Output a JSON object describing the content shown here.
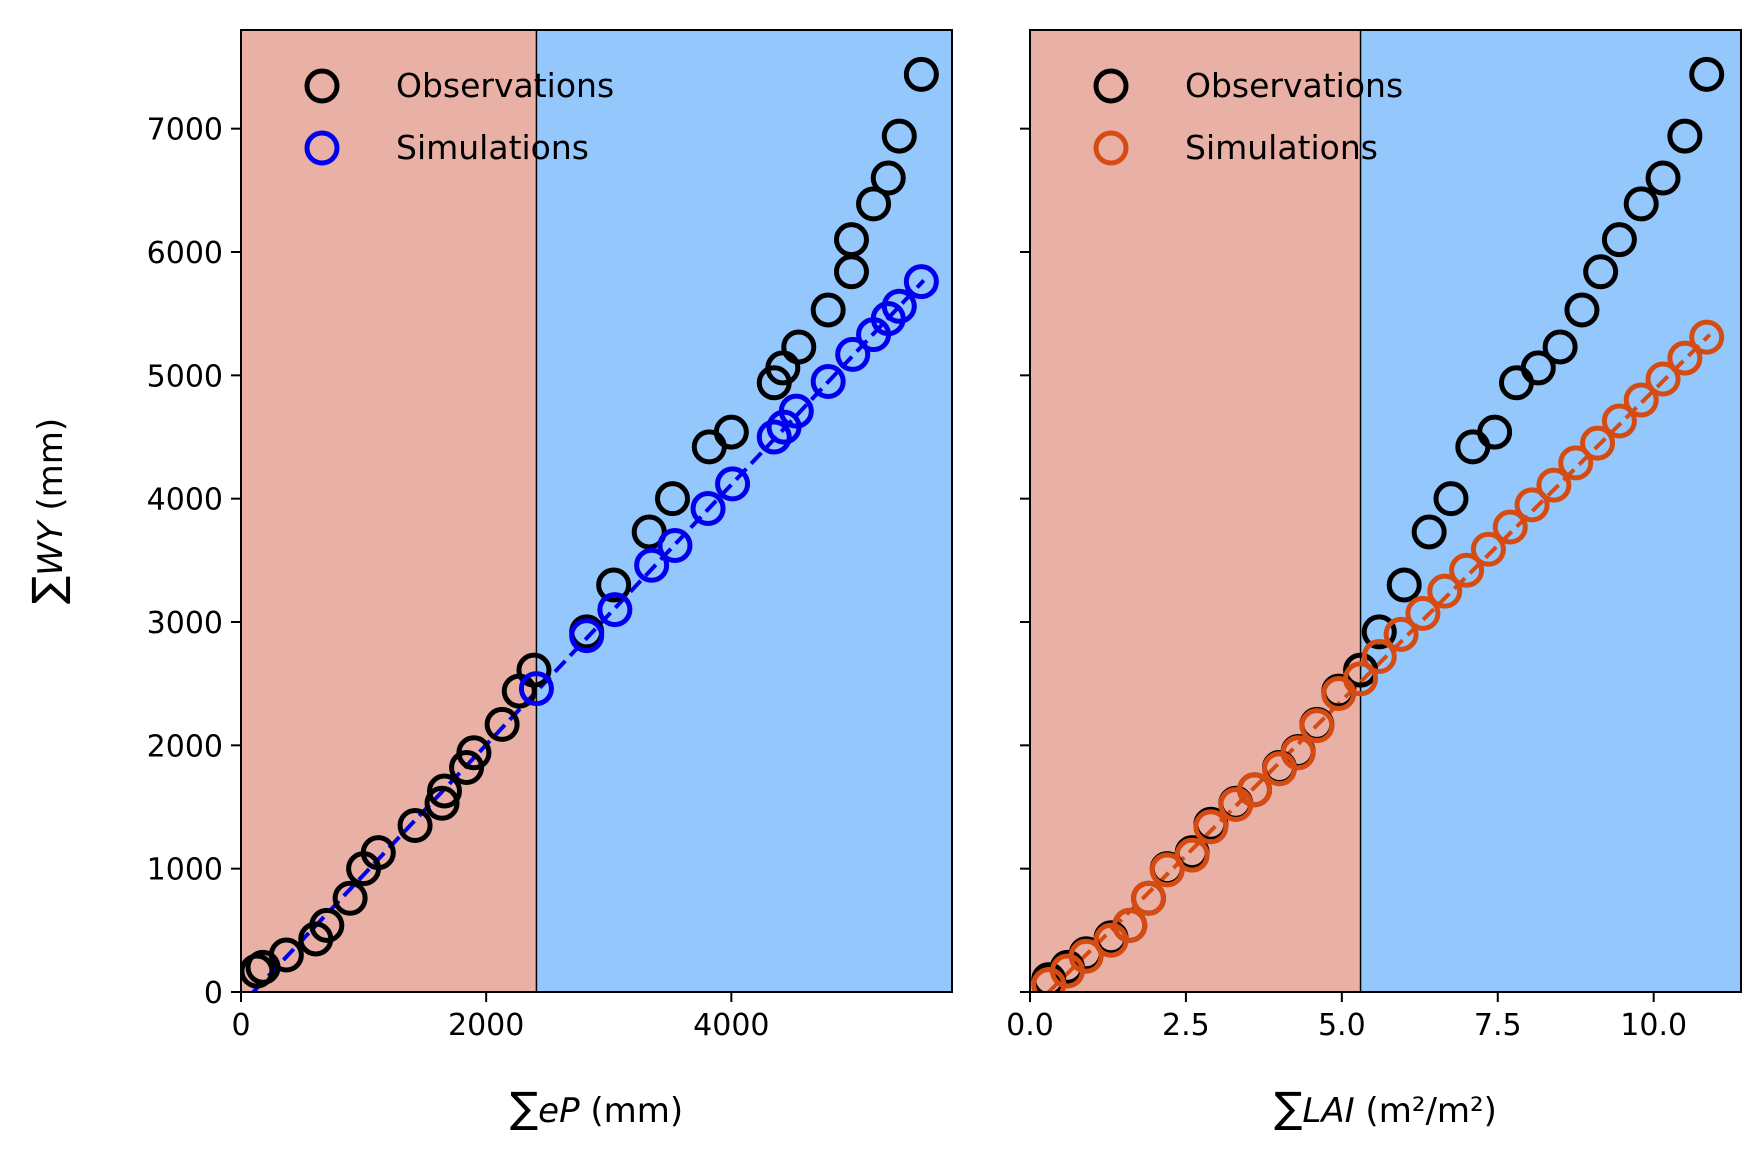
{
  "chart_data": [
    {
      "type": "scatter",
      "xlabel": {
        "sym": "∑",
        "var": "eP",
        "unit": " (mm)"
      },
      "ylabel": {
        "sym": "∑",
        "var": "WY",
        "unit": " (mm)"
      },
      "xlim": [
        0,
        5800
      ],
      "ylim": [
        0,
        7800
      ],
      "xticks": [
        0,
        2000,
        4000
      ],
      "xtick_labels": [
        "0",
        "2000",
        "4000"
      ],
      "yticks": [
        0,
        1000,
        2000,
        3000,
        4000,
        5000,
        6000,
        7000
      ],
      "ytick_labels": [
        "0",
        "1000",
        "2000",
        "3000",
        "4000",
        "5000",
        "6000",
        "7000"
      ],
      "regions": [
        {
          "from": 0,
          "to": 2410,
          "color": "#e9b0a5"
        },
        {
          "from": 2410,
          "to": 5800,
          "color": "#94c7fc"
        }
      ],
      "legend_position": "top-left",
      "series": [
        {
          "name": "Observations",
          "color": "#000000",
          "x": [
            130,
            180,
            370,
            610,
            700,
            890,
            1000,
            1120,
            1420,
            1640,
            1660,
            1840,
            1900,
            2130,
            2270,
            2390,
            2820,
            3040,
            3330,
            3520,
            3820,
            4000,
            4350,
            4420,
            4550,
            4790,
            4980,
            4980,
            5160,
            5280,
            5370,
            5550
          ],
          "y": [
            170,
            200,
            300,
            430,
            540,
            760,
            1000,
            1130,
            1350,
            1530,
            1630,
            1820,
            1940,
            2170,
            2440,
            2610,
            2920,
            3300,
            3730,
            4000,
            4420,
            4540,
            4940,
            5060,
            5230,
            5530,
            5840,
            6100,
            6390,
            6600,
            6940,
            7440
          ]
        },
        {
          "name": "Simulations",
          "color": "#0000ee",
          "x": [
            2410,
            2820,
            3050,
            3350,
            3540,
            3810,
            4010,
            4350,
            4430,
            4530,
            4790,
            4990,
            5160,
            5280,
            5370,
            5550
          ],
          "y": [
            2460,
            2890,
            3100,
            3460,
            3620,
            3920,
            4120,
            4500,
            4580,
            4710,
            4950,
            5170,
            5330,
            5460,
            5560,
            5760
          ]
        }
      ],
      "fit_line": {
        "color": "#0000ee",
        "x": [
          100,
          5570
        ],
        "y": [
          0,
          5770
        ]
      }
    },
    {
      "type": "scatter",
      "xlabel": {
        "sym": "∑",
        "var": "LAI",
        "unit": "(m²/m²)"
      },
      "ylabel": "",
      "xlim": [
        0,
        11.4
      ],
      "ylim": [
        0,
        7800
      ],
      "xticks": [
        0,
        2.5,
        5,
        7.5,
        10
      ],
      "xtick_labels": [
        "0.0",
        "2.5",
        "5.0",
        "7.5",
        "10.0"
      ],
      "yticks": [
        0,
        1000,
        2000,
        3000,
        4000,
        5000,
        6000,
        7000
      ],
      "regions": [
        {
          "from": 0,
          "to": 5.3,
          "color": "#e9b0a5"
        },
        {
          "from": 5.3,
          "to": 11.4,
          "color": "#94c7fc"
        }
      ],
      "legend_position": "top-left",
      "series": [
        {
          "name": "Observations",
          "color": "#000000",
          "x": [
            0.3,
            0.6,
            0.9,
            1.3,
            1.6,
            1.9,
            2.2,
            2.6,
            2.9,
            3.3,
            3.6,
            4.0,
            4.3,
            4.6,
            4.95,
            5.3,
            5.6,
            6.0,
            6.4,
            6.75,
            7.1,
            7.45,
            7.8,
            8.15,
            8.5,
            8.85,
            9.15,
            9.45,
            9.8,
            10.15,
            10.5,
            10.85
          ],
          "y": [
            100,
            200,
            310,
            440,
            540,
            760,
            1000,
            1130,
            1360,
            1530,
            1640,
            1820,
            1950,
            2170,
            2440,
            2610,
            2920,
            3300,
            3730,
            4000,
            4420,
            4540,
            4940,
            5060,
            5230,
            5530,
            5840,
            6100,
            6390,
            6600,
            6940,
            7440
          ]
        },
        {
          "name": "Simulations",
          "color": "#d64b12",
          "x": [
            0.3,
            0.6,
            0.9,
            1.3,
            1.6,
            1.9,
            2.2,
            2.6,
            2.9,
            3.3,
            3.6,
            4.0,
            4.3,
            4.6,
            4.95,
            5.3,
            5.6,
            5.95,
            6.3,
            6.65,
            7.0,
            7.35,
            7.7,
            8.05,
            8.4,
            8.75,
            9.1,
            9.45,
            9.8,
            10.15,
            10.5,
            10.85
          ],
          "y": [
            60,
            170,
            290,
            420,
            540,
            760,
            990,
            1110,
            1340,
            1520,
            1640,
            1810,
            1940,
            2160,
            2420,
            2540,
            2720,
            2900,
            3070,
            3250,
            3420,
            3590,
            3770,
            3950,
            4110,
            4290,
            4450,
            4630,
            4800,
            4970,
            5140,
            5310
          ]
        }
      ],
      "fit_line": {
        "color": "#d64b12",
        "x": [
          0.3,
          10.9
        ],
        "y": [
          0,
          5330
        ]
      }
    }
  ]
}
